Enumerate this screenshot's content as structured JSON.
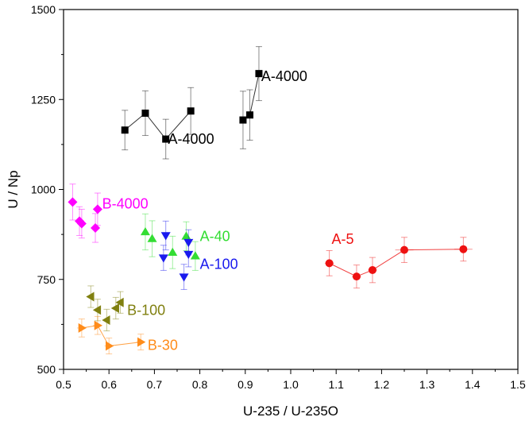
{
  "chart_data": {
    "type": "scatter",
    "title": "",
    "xlabel": "U-235 / U-235O",
    "ylabel": "U / Np",
    "xlim": [
      0.5,
      1.5
    ],
    "ylim": [
      500,
      1500
    ],
    "x_ticks": [
      "0.5",
      "0.6",
      "0.7",
      "0.8",
      "0.9",
      "1.0",
      "1.1",
      "1.2",
      "1.3",
      "1.4",
      "1.5"
    ],
    "y_ticks": [
      "500",
      "750",
      "1000",
      "1250",
      "1500"
    ],
    "grid": false,
    "series": [
      {
        "name": "A-4000",
        "color": "#000000",
        "marker": "square",
        "connected": true,
        "points": [
          {
            "x": 0.635,
            "y": 1165,
            "yerr": 55
          },
          {
            "x": 0.68,
            "y": 1212,
            "yerr": 62
          },
          {
            "x": 0.725,
            "y": 1140,
            "yerr": 55
          },
          {
            "x": 0.78,
            "y": 1218,
            "yerr": 65
          }
        ]
      },
      {
        "name": "A-4000",
        "color": "#000000",
        "marker": "square",
        "connected": true,
        "points": [
          {
            "x": 0.895,
            "y": 1193,
            "yerr": 80
          },
          {
            "x": 0.91,
            "y": 1207,
            "yerr": 70
          },
          {
            "x": 0.93,
            "y": 1322,
            "yerr": 75
          }
        ]
      },
      {
        "name": "B-4000",
        "color": "#ff00ff",
        "marker": "diamond",
        "connected": false,
        "points": [
          {
            "x": 0.52,
            "y": 965,
            "yerr": 50
          },
          {
            "x": 0.535,
            "y": 912,
            "yerr": 40
          },
          {
            "x": 0.54,
            "y": 905,
            "yerr": 40
          },
          {
            "x": 0.57,
            "y": 893,
            "yerr": 40
          },
          {
            "x": 0.575,
            "y": 945,
            "yerr": 45
          }
        ]
      },
      {
        "name": "A-40",
        "color": "#33dd33",
        "marker": "triangle-up",
        "connected": false,
        "points": [
          {
            "x": 0.68,
            "y": 882,
            "yerr": 50
          },
          {
            "x": 0.695,
            "y": 863,
            "yerr": 50
          },
          {
            "x": 0.74,
            "y": 825,
            "yerr": 45
          },
          {
            "x": 0.77,
            "y": 870,
            "yerr": 40
          },
          {
            "x": 0.79,
            "y": 815,
            "yerr": 40
          }
        ]
      },
      {
        "name": "A-100",
        "color": "#1a1aee",
        "marker": "triangle-down",
        "connected": false,
        "points": [
          {
            "x": 0.72,
            "y": 810,
            "yerr": 35
          },
          {
            "x": 0.725,
            "y": 872,
            "yerr": 40
          },
          {
            "x": 0.765,
            "y": 757,
            "yerr": 35
          },
          {
            "x": 0.775,
            "y": 853,
            "yerr": 35
          },
          {
            "x": 0.775,
            "y": 820,
            "yerr": 35
          }
        ]
      },
      {
        "name": "A-5",
        "color": "#ee1111",
        "marker": "circle",
        "connected": true,
        "points": [
          {
            "x": 1.085,
            "y": 795,
            "yerr": 35,
            "xerr": 0.01
          },
          {
            "x": 1.145,
            "y": 758,
            "yerr": 32,
            "xerr": 0.01
          },
          {
            "x": 1.18,
            "y": 776,
            "yerr": 35,
            "xerr": 0.01
          },
          {
            "x": 1.25,
            "y": 832,
            "yerr": 35,
            "xerr": 0.02
          },
          {
            "x": 1.38,
            "y": 834,
            "yerr": 33,
            "xerr": 0.02
          }
        ]
      },
      {
        "name": "B-100",
        "color": "#808010",
        "marker": "triangle-left",
        "connected": false,
        "points": [
          {
            "x": 0.56,
            "y": 702,
            "yerr": 30
          },
          {
            "x": 0.575,
            "y": 665,
            "yerr": 30
          },
          {
            "x": 0.595,
            "y": 637,
            "yerr": 30
          },
          {
            "x": 0.615,
            "y": 670,
            "yerr": 30
          },
          {
            "x": 0.625,
            "y": 686,
            "yerr": 30
          }
        ]
      },
      {
        "name": "B-30",
        "color": "#ff8c1a",
        "marker": "triangle-right",
        "connected": true,
        "points": [
          {
            "x": 0.54,
            "y": 615,
            "yerr": 25,
            "xerr": 0.01
          },
          {
            "x": 0.575,
            "y": 622,
            "yerr": 25,
            "xerr": 0.01
          },
          {
            "x": 0.6,
            "y": 565,
            "yerr": 22,
            "xerr": 0.01
          },
          {
            "x": 0.67,
            "y": 576,
            "yerr": 22,
            "xerr": 0.01
          }
        ]
      }
    ],
    "annotations": [
      {
        "text": "A-4000",
        "x": 0.73,
        "y": 1140,
        "color": "#000000"
      },
      {
        "text": "A-4000",
        "x": 0.935,
        "y": 1315,
        "color": "#000000"
      },
      {
        "text": "B-4000",
        "x": 0.585,
        "y": 960,
        "color": "#ff00ff"
      },
      {
        "text": "A-40",
        "x": 0.8,
        "y": 870,
        "color": "#33dd33"
      },
      {
        "text": "A-100",
        "x": 0.8,
        "y": 792,
        "color": "#1a1aee"
      },
      {
        "text": "A-5",
        "x": 1.09,
        "y": 862,
        "color": "#ee1111"
      },
      {
        "text": "B-100",
        "x": 0.64,
        "y": 664,
        "color": "#808010"
      },
      {
        "text": "B-30",
        "x": 0.685,
        "y": 567,
        "color": "#ff8c1a"
      }
    ]
  }
}
